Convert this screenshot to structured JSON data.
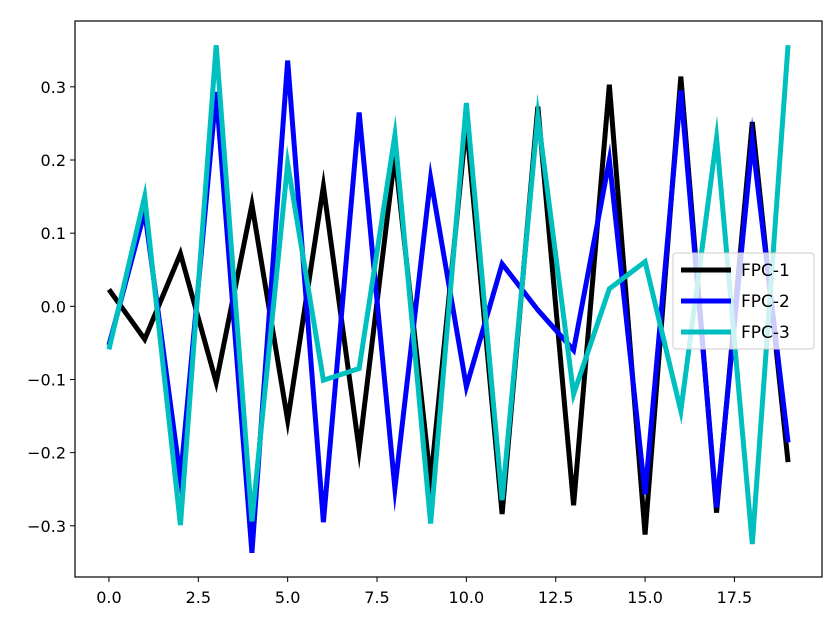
{
  "chart_data": {
    "type": "line",
    "title": "",
    "xlabel": "",
    "ylabel": "",
    "xlim": [
      -0.95,
      19.95
    ],
    "ylim": [
      -0.37,
      0.39
    ],
    "xticks": [
      0.0,
      2.5,
      5.0,
      7.5,
      10.0,
      12.5,
      15.0,
      17.5
    ],
    "xtick_labels": [
      "0.0",
      "2.5",
      "5.0",
      "7.5",
      "10.0",
      "12.5",
      "15.0",
      "17.5"
    ],
    "yticks": [
      -0.3,
      -0.2,
      -0.1,
      0.0,
      0.1,
      0.2,
      0.3
    ],
    "ytick_labels": [
      "−0.3",
      "−0.2",
      "−0.1",
      "0.0",
      "0.1",
      "0.2",
      "0.3"
    ],
    "grid": false,
    "legend_position": "center-right",
    "x": [
      0,
      1,
      2,
      3,
      4,
      5,
      6,
      7,
      8,
      9,
      10,
      11,
      12,
      13,
      14,
      15,
      16,
      17,
      18,
      19
    ],
    "series": [
      {
        "name": "FPC-1",
        "color": "#000000",
        "values": [
          0.023,
          -0.045,
          0.072,
          -0.104,
          0.139,
          -0.156,
          0.164,
          -0.196,
          0.207,
          -0.24,
          0.251,
          -0.284,
          0.273,
          -0.272,
          0.303,
          -0.312,
          0.314,
          -0.282,
          0.252,
          -0.213
        ]
      },
      {
        "name": "FPC-2",
        "color": "#0000ff",
        "values": [
          -0.053,
          0.13,
          -0.236,
          0.293,
          -0.337,
          0.336,
          -0.295,
          0.265,
          -0.249,
          0.175,
          -0.11,
          0.058,
          -0.005,
          -0.06,
          0.2,
          -0.257,
          0.295,
          -0.275,
          0.227,
          -0.186
        ]
      },
      {
        "name": "FPC-3",
        "color": "#00bfbf",
        "values": [
          -0.059,
          0.15,
          -0.299,
          0.357,
          -0.294,
          0.195,
          -0.101,
          -0.085,
          0.234,
          -0.297,
          0.278,
          -0.265,
          0.26,
          -0.12,
          0.024,
          0.061,
          -0.143,
          0.23,
          -0.325,
          0.357
        ]
      }
    ]
  }
}
